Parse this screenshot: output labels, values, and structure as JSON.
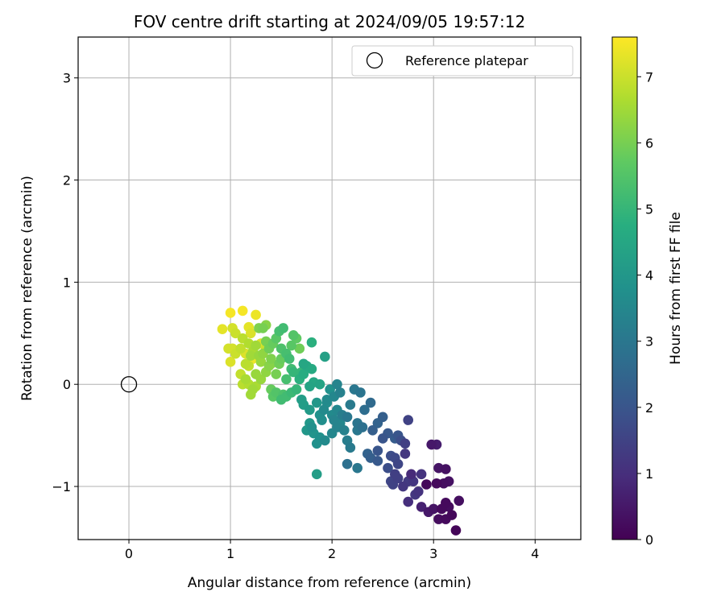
{
  "chart_data": {
    "type": "scatter",
    "title": "FOV centre drift starting at 2024/09/05 19:57:12",
    "xlabel": "Angular distance from reference (arcmin)",
    "ylabel": "Rotation from reference (arcmin)",
    "xlim": [
      -0.5,
      4.45
    ],
    "ylim": [
      -1.52,
      3.4
    ],
    "xticks": [
      0,
      1,
      2,
      3,
      4
    ],
    "xtick_labels": [
      "0",
      "1",
      "2",
      "3",
      "4"
    ],
    "yticks": [
      -1,
      0,
      1,
      2,
      3
    ],
    "ytick_labels": [
      "−1",
      "0",
      "1",
      "2",
      "3"
    ],
    "grid": true,
    "legend": {
      "location": "top-right",
      "entries": [
        "Reference platepar"
      ]
    },
    "reference_point": {
      "name": "Reference platepar",
      "x": 0,
      "y": 0,
      "marker": "open-circle"
    },
    "colorbar": {
      "label": "Hours from first FF file",
      "colormap": "viridis",
      "range": [
        0,
        7.6
      ],
      "ticks": [
        0,
        1,
        2,
        3,
        4,
        5,
        6,
        7
      ],
      "tick_labels": [
        "0",
        "1",
        "2",
        "3",
        "4",
        "5",
        "6",
        "7"
      ]
    },
    "series": [
      {
        "colored_by": "hours",
        "points": [
          [
            3.22,
            -1.43,
            0.1
          ],
          [
            3.12,
            -1.32,
            0.2
          ],
          [
            3.18,
            -1.28,
            0.15
          ],
          [
            3.25,
            -1.14,
            0.3
          ],
          [
            3.05,
            -1.32,
            0.25
          ],
          [
            3.08,
            -1.22,
            0.2
          ],
          [
            3.15,
            -1.2,
            0.25
          ],
          [
            2.95,
            -1.25,
            0.5
          ],
          [
            3.0,
            -1.22,
            0.4
          ],
          [
            3.12,
            -1.16,
            0.2
          ],
          [
            2.93,
            -0.98,
            0.15
          ],
          [
            3.03,
            -0.97,
            0.2
          ],
          [
            3.1,
            -0.97,
            0.3
          ],
          [
            3.15,
            -0.95,
            0.35
          ],
          [
            3.05,
            -0.82,
            0.4
          ],
          [
            3.12,
            -0.83,
            0.35
          ],
          [
            2.98,
            -0.59,
            0.5
          ],
          [
            3.03,
            -0.59,
            0.6
          ],
          [
            2.88,
            -1.2,
            0.7
          ],
          [
            2.82,
            -1.08,
            1.2
          ],
          [
            2.85,
            -1.05,
            1.1
          ],
          [
            2.75,
            -1.15,
            1.0
          ],
          [
            2.8,
            -0.95,
            1.2
          ],
          [
            2.88,
            -0.88,
            1.1
          ],
          [
            2.78,
            -0.88,
            0.9
          ],
          [
            2.75,
            -0.95,
            1.3
          ],
          [
            2.7,
            -1.0,
            1.2
          ],
          [
            2.65,
            -0.92,
            1.4
          ],
          [
            2.6,
            -0.98,
            1.5
          ],
          [
            2.62,
            -0.88,
            1.4
          ],
          [
            2.58,
            -0.95,
            1.6
          ],
          [
            2.65,
            -0.78,
            1.6
          ],
          [
            2.62,
            -0.72,
            1.7
          ],
          [
            2.58,
            -0.7,
            1.8
          ],
          [
            2.55,
            -0.82,
            1.8
          ],
          [
            2.75,
            -0.35,
            1.5
          ],
          [
            2.72,
            -0.68,
            1.2
          ],
          [
            2.72,
            -0.58,
            1.4
          ],
          [
            2.68,
            -0.55,
            1.8
          ],
          [
            2.65,
            -0.5,
            2.0
          ],
          [
            2.62,
            -0.53,
            2.2
          ],
          [
            2.55,
            -0.48,
            2.1
          ],
          [
            2.5,
            -0.53,
            2.0
          ],
          [
            2.5,
            -0.32,
            2.3
          ],
          [
            2.45,
            -0.38,
            2.4
          ],
          [
            2.4,
            -0.45,
            2.3
          ],
          [
            2.45,
            -0.65,
            2.0
          ],
          [
            2.45,
            -0.75,
            2.1
          ],
          [
            2.38,
            -0.72,
            2.3
          ],
          [
            2.35,
            -0.68,
            2.4
          ],
          [
            2.38,
            -0.18,
            2.6
          ],
          [
            2.32,
            -0.25,
            2.7
          ],
          [
            2.3,
            -0.42,
            2.8
          ],
          [
            2.25,
            -0.38,
            2.9
          ],
          [
            2.25,
            -0.45,
            3.0
          ],
          [
            2.28,
            -0.08,
            2.9
          ],
          [
            2.22,
            -0.05,
            3.0
          ],
          [
            2.18,
            -0.2,
            3.1
          ],
          [
            2.15,
            -0.32,
            3.0
          ],
          [
            2.1,
            -0.3,
            3.2
          ],
          [
            2.12,
            -0.45,
            3.3
          ],
          [
            2.15,
            -0.55,
            3.2
          ],
          [
            2.15,
            -0.78,
            2.8
          ],
          [
            2.18,
            -0.62,
            3.1
          ],
          [
            2.25,
            -0.82,
            3.0
          ],
          [
            2.05,
            -0.42,
            3.4
          ],
          [
            2.08,
            -0.38,
            3.5
          ],
          [
            2.02,
            -0.35,
            3.4
          ],
          [
            2.0,
            -0.48,
            3.5
          ],
          [
            2.05,
            -0.25,
            3.5
          ],
          [
            2.0,
            -0.3,
            3.6
          ],
          [
            1.95,
            -0.18,
            3.7
          ],
          [
            1.92,
            -0.25,
            3.6
          ],
          [
            1.88,
            -0.3,
            3.8
          ],
          [
            1.9,
            -0.35,
            3.7
          ],
          [
            1.93,
            -0.55,
            3.6
          ],
          [
            1.88,
            -0.52,
            3.8
          ],
          [
            1.85,
            -0.58,
            3.8
          ],
          [
            1.82,
            -0.48,
            3.9
          ],
          [
            1.8,
            -0.42,
            3.8
          ],
          [
            1.78,
            -0.38,
            4.0
          ],
          [
            1.75,
            -0.45,
            4.0
          ],
          [
            1.78,
            -0.25,
            4.1
          ],
          [
            1.72,
            -0.2,
            4.2
          ],
          [
            1.7,
            -0.15,
            4.2
          ],
          [
            1.85,
            -0.88,
            4.2
          ],
          [
            1.95,
            -0.15,
            3.6
          ],
          [
            2.02,
            -0.12,
            3.5
          ],
          [
            2.05,
            0.0,
            3.4
          ],
          [
            2.08,
            -0.08,
            3.3
          ],
          [
            1.98,
            -0.05,
            3.8
          ],
          [
            1.85,
            -0.18,
            4.0
          ],
          [
            1.88,
            0.0,
            4.4
          ],
          [
            1.82,
            0.02,
            4.5
          ],
          [
            1.78,
            -0.02,
            4.4
          ],
          [
            1.8,
            0.15,
            4.6
          ],
          [
            1.75,
            0.18,
            4.6
          ],
          [
            1.72,
            0.2,
            4.5
          ],
          [
            1.93,
            0.27,
            4.3
          ],
          [
            1.8,
            0.41,
            4.8
          ],
          [
            1.72,
            0.1,
            4.7
          ],
          [
            1.68,
            0.05,
            4.8
          ],
          [
            1.62,
            0.12,
            5.0
          ],
          [
            1.65,
            -0.05,
            5.0
          ],
          [
            1.6,
            -0.08,
            5.1
          ],
          [
            1.55,
            -0.12,
            5.2
          ],
          [
            1.5,
            -0.15,
            5.2
          ],
          [
            1.52,
            -0.1,
            5.4
          ],
          [
            1.45,
            -0.08,
            5.5
          ],
          [
            1.42,
            -0.12,
            5.6
          ],
          [
            1.4,
            -0.05,
            5.8
          ],
          [
            1.55,
            0.05,
            5.3
          ],
          [
            1.6,
            0.15,
            5.2
          ],
          [
            1.58,
            0.25,
            5.2
          ],
          [
            1.55,
            0.3,
            5.3
          ],
          [
            1.5,
            0.35,
            5.4
          ],
          [
            1.48,
            0.52,
            5.3
          ],
          [
            1.52,
            0.55,
            5.2
          ],
          [
            1.62,
            0.48,
            5.5
          ],
          [
            1.65,
            0.45,
            5.7
          ],
          [
            1.68,
            0.35,
            5.9
          ],
          [
            1.45,
            0.45,
            5.6
          ],
          [
            1.42,
            0.4,
            5.8
          ],
          [
            1.38,
            0.35,
            5.9
          ],
          [
            1.35,
            0.42,
            6.0
          ],
          [
            1.32,
            0.55,
            6.0
          ],
          [
            1.28,
            0.55,
            6.1
          ],
          [
            1.35,
            0.58,
            6.2
          ],
          [
            1.4,
            0.25,
            6.1
          ],
          [
            1.38,
            0.18,
            6.2
          ],
          [
            1.35,
            0.12,
            6.3
          ],
          [
            1.3,
            0.05,
            6.4
          ],
          [
            1.25,
            0.1,
            6.4
          ],
          [
            1.22,
            -0.05,
            6.5
          ],
          [
            1.2,
            -0.1,
            6.5
          ],
          [
            1.25,
            -0.02,
            6.6
          ],
          [
            1.18,
            0.0,
            6.7
          ],
          [
            1.15,
            0.05,
            6.6
          ],
          [
            1.12,
            0.0,
            6.8
          ],
          [
            1.1,
            0.1,
            6.9
          ],
          [
            1.15,
            0.2,
            6.8
          ],
          [
            1.18,
            0.18,
            6.9
          ],
          [
            1.2,
            0.28,
            6.5
          ],
          [
            1.22,
            0.32,
            6.6
          ],
          [
            1.28,
            0.28,
            6.4
          ],
          [
            1.3,
            0.22,
            6.4
          ],
          [
            1.32,
            0.3,
            6.3
          ],
          [
            1.25,
            0.38,
            6.5
          ],
          [
            1.18,
            0.4,
            6.7
          ],
          [
            1.12,
            0.45,
            6.8
          ],
          [
            1.1,
            0.35,
            6.9
          ],
          [
            1.05,
            0.3,
            7.0
          ],
          [
            1.02,
            0.35,
            7.1
          ],
          [
            1.0,
            0.22,
            7.2
          ],
          [
            0.98,
            0.35,
            7.1
          ],
          [
            1.05,
            0.5,
            7.0
          ],
          [
            1.02,
            0.55,
            7.1
          ],
          [
            0.92,
            0.54,
            7.3
          ],
          [
            1.0,
            0.7,
            7.5
          ],
          [
            1.12,
            0.72,
            7.5
          ],
          [
            1.25,
            0.68,
            7.4
          ],
          [
            1.18,
            0.56,
            7.3
          ],
          [
            1.2,
            0.5,
            7.2
          ],
          [
            1.15,
            0.3,
            7.2
          ],
          [
            1.22,
            0.25,
            7.4
          ],
          [
            1.28,
            0.28,
            7.5
          ],
          [
            1.3,
            0.4,
            7.2
          ],
          [
            1.35,
            0.35,
            7.0
          ],
          [
            1.4,
            0.2,
            6.2
          ],
          [
            1.45,
            0.1,
            6.0
          ],
          [
            1.48,
            0.2,
            5.9
          ],
          [
            1.5,
            0.25,
            5.8
          ],
          [
            1.55,
            0.28,
            5.8
          ],
          [
            1.6,
            0.38,
            5.6
          ],
          [
            1.7,
            0.12,
            5.0
          ]
        ]
      }
    ]
  }
}
